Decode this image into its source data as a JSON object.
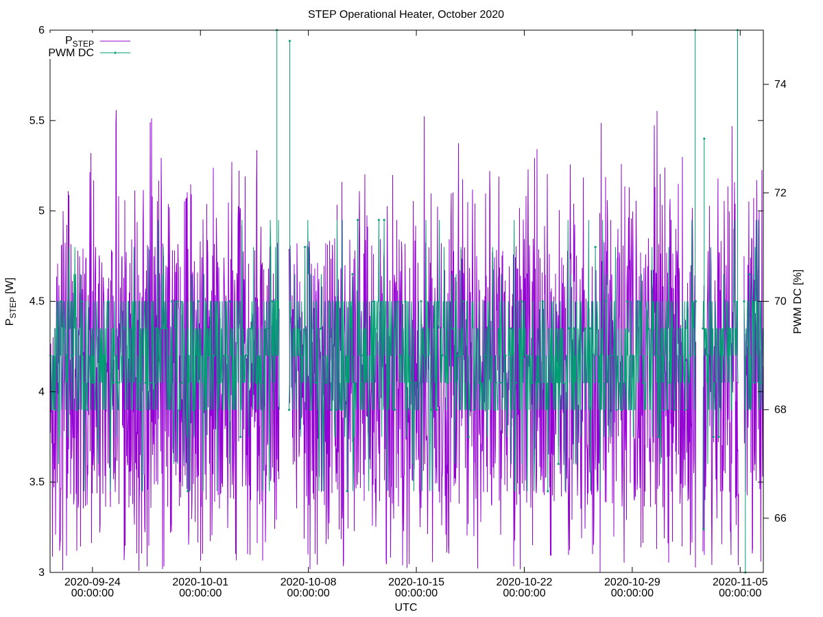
{
  "chart_data": {
    "type": "line",
    "title": "STEP Operational Heater, October 2020",
    "xlabel": "UTC",
    "ylabel": {
      "main": "P",
      "sub": "STEP",
      "unit": " [W]"
    },
    "y2label": "PWM DC [%]",
    "xlim": [
      "2020-09-21 06:00:00",
      "2020-11-06 12:00:00"
    ],
    "ylim": [
      3,
      6
    ],
    "y2lim": [
      65,
      75
    ],
    "y_ticks": [
      "3",
      "3.5",
      "4",
      "4.5",
      "5",
      "5.5",
      "6"
    ],
    "y2_ticks": [
      "66",
      "68",
      "70",
      "72",
      "74"
    ],
    "x_ticks": [
      {
        "date": "2020-09-24",
        "time": "00:00:00"
      },
      {
        "date": "2020-10-01",
        "time": "00:00:00"
      },
      {
        "date": "2020-10-08",
        "time": "00:00:00"
      },
      {
        "date": "2020-10-15",
        "time": "00:00:00"
      },
      {
        "date": "2020-10-22",
        "time": "00:00:00"
      },
      {
        "date": "2020-10-29",
        "time": "00:00:00"
      },
      {
        "date": "2020-11-05",
        "time": "00:00:00"
      }
    ],
    "grid": false,
    "legend_position": "top-left",
    "series": [
      {
        "name": "P",
        "name_sub": "STEP",
        "axis": "y1",
        "color": "#9400d3",
        "typical_range": [
          3.3,
          4.9
        ],
        "spike_range": [
          3.0,
          5.57
        ]
      },
      {
        "name": "PWM DC",
        "axis": "y2",
        "color": "#009e73",
        "marker": "diamond",
        "levels": [
          66.5,
          67.0,
          67.5,
          68.0,
          68.5,
          69.0,
          69.5,
          70.0,
          70.5,
          71.0,
          71.5
        ],
        "typical_range": [
          68.0,
          70.0
        ]
      }
    ],
    "data_gaps": [
      {
        "start": "2020-10-06 03:00:00",
        "end": "2020-10-06 18:00:00"
      },
      {
        "start": "2020-11-02 03:00:00",
        "end": "2020-11-02 14:00:00"
      },
      {
        "start": "2020-11-04 22:00:00",
        "end": "2020-11-05 06:00:00"
      }
    ],
    "pwm_excursions": [
      {
        "time": "2020-10-05 23:00:00",
        "value": 75.0
      },
      {
        "time": "2020-10-06 19:00:00",
        "value": 74.8
      },
      {
        "time": "2020-11-02 02:00:00",
        "value": 75.0
      },
      {
        "time": "2020-11-02 15:00:00",
        "value": 65.8
      },
      {
        "time": "2020-11-02 16:00:00",
        "value": 73.0
      },
      {
        "time": "2020-11-04 20:00:00",
        "value": 75.0
      },
      {
        "time": "2020-11-05 08:00:00",
        "value": 65.0
      }
    ]
  }
}
